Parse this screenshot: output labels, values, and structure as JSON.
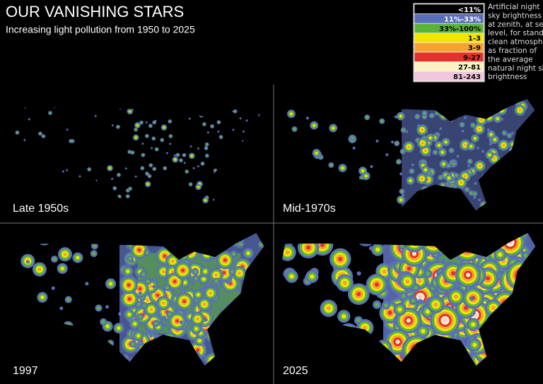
{
  "header": {
    "title": "OUR VANISHING STARS",
    "subtitle": "Increasing light pollution from 1950 to 2025"
  },
  "legend": {
    "items": [
      {
        "label": "<11%",
        "color": "#000000"
      },
      {
        "label": "11%-33%",
        "color": "#5b6fb8"
      },
      {
        "label": "33%-100%",
        "color": "#5cb33a"
      },
      {
        "label": "1-3",
        "color": "#f2e600"
      },
      {
        "label": "3-9",
        "color": "#f4a234"
      },
      {
        "label": "9-27",
        "color": "#e3322b"
      },
      {
        "label": "27-81",
        "color": "#fbf2c4"
      },
      {
        "label": "81-243",
        "color": "#efc6dc"
      }
    ],
    "description": [
      "Artificial night",
      "sky brightness",
      "at zenith, at sea",
      "level, for standard",
      "clean atmosphere",
      "as fraction of",
      "the average",
      "natural night sky",
      "brightness"
    ]
  },
  "panels": [
    {
      "label": "Late 1950s"
    },
    {
      "label": "Mid-1970s"
    },
    {
      "label": "1997"
    },
    {
      "label": "2025"
    }
  ]
}
